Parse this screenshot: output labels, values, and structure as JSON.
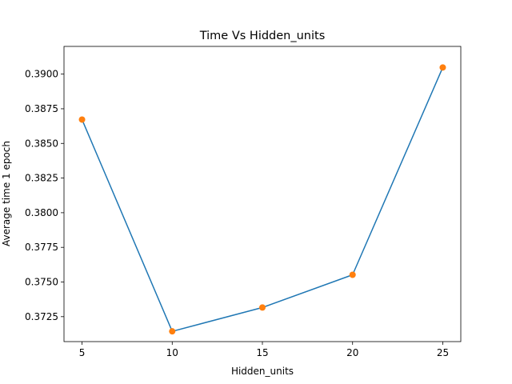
{
  "chart_data": {
    "type": "line",
    "title": "Time Vs Hidden_units",
    "xlabel": "Hidden_units",
    "ylabel": "Average time 1 epoch",
    "x": [
      5,
      10,
      15,
      20,
      25
    ],
    "series": [
      {
        "values": [
          0.38672,
          0.37144,
          0.37316,
          0.37552,
          0.39048
        ]
      }
    ],
    "xticks": [
      5,
      10,
      15,
      20,
      25
    ],
    "xtick_labels": [
      "5",
      "10",
      "15",
      "20",
      "25"
    ],
    "yticks": [
      0.3725,
      0.375,
      0.3775,
      0.38,
      0.3825,
      0.385,
      0.3875,
      0.39
    ],
    "ytick_labels": [
      "0.3725",
      "0.3750",
      "0.3775",
      "0.3800",
      "0.3825",
      "0.3850",
      "0.3875",
      "0.3900"
    ],
    "xlim": [
      4.0,
      26.0
    ],
    "ylim": [
      0.3707,
      0.392
    ],
    "grid": false,
    "line_color": "#1f77b4",
    "marker_color": "#ff7f0e"
  }
}
